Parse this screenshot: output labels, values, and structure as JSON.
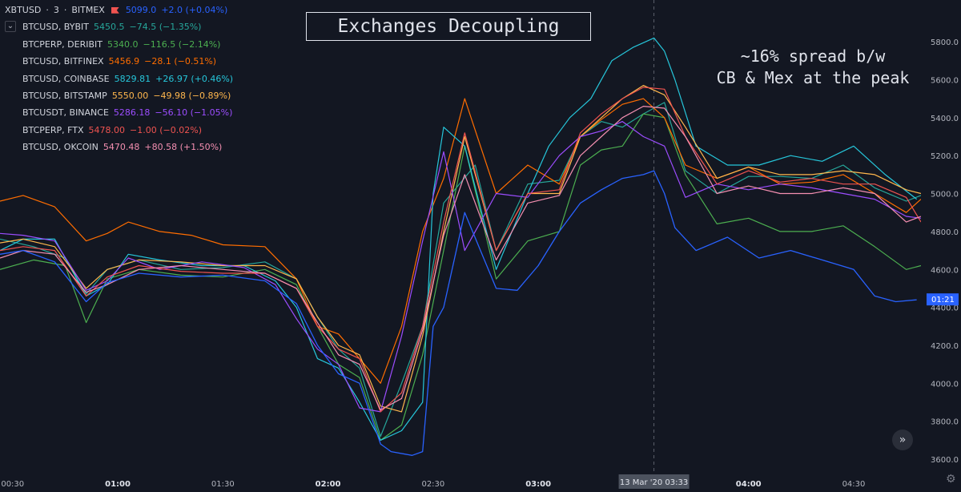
{
  "legend": {
    "main": {
      "symbol": "XBTUSD",
      "interval": "3",
      "exchange": "BITMEX",
      "sep1": "·",
      "sep2": "·",
      "value": "5099.0",
      "change": "+2.0 (+0.04%)",
      "color": "#2962ff"
    },
    "toggle_glyph": "⌄",
    "rows": [
      {
        "name": "BTCUSD, BYBIT",
        "value": "5450.5",
        "change": "−74.5 (−1.35%)",
        "color": "#26a69a"
      },
      {
        "name": "BTCPERP, DERIBIT",
        "value": "5340.0",
        "change": "−116.5 (−2.14%)",
        "color": "#4caf50"
      },
      {
        "name": "BTCUSD, BITFINEX",
        "value": "5456.9",
        "change": "−28.1 (−0.51%)",
        "color": "#ff6d00"
      },
      {
        "name": "BTCUSD, COINBASE",
        "value": "5829.81",
        "change": "+26.97 (+0.46%)",
        "color": "#26c6da"
      },
      {
        "name": "BTCUSD, BITSTAMP",
        "value": "5550.00",
        "change": "−49.98 (−0.89%)",
        "color": "#ffb74d"
      },
      {
        "name": "BTCUSDT, BINANCE",
        "value": "5286.18",
        "change": "−56.10 (−1.05%)",
        "color": "#9c4dff"
      },
      {
        "name": "BTCPERP, FTX",
        "value": "5478.00",
        "change": "−1.00 (−0.02%)",
        "color": "#ef5350"
      },
      {
        "name": "BTCUSD, OKCOIN",
        "value": "5470.48",
        "change": "+80.58 (+1.50%)",
        "color": "#f48fb1"
      }
    ]
  },
  "annotations": {
    "title": "Exchanges Decoupling",
    "note_line1": "~16% spread b/w",
    "note_line2": "CB & Mex at the peak"
  },
  "price_label": "01:21",
  "crosshair_label": "13 Mar '20   03:33",
  "scroll_icon_glyph": "»",
  "settings_icon_glyph": "⚙",
  "colors": {
    "background": "#131722",
    "price_label_bg": "#2962ff",
    "crosshair_label_bg": "#4c525e"
  },
  "chart_data": {
    "type": "line",
    "grid": false,
    "yticks": [
      3600,
      3800,
      4000,
      4200,
      4400,
      4600,
      4800,
      5000,
      5200,
      5400,
      5600,
      5800
    ],
    "ytick_labels": [
      "3600.0",
      "3800.0",
      "4000.0",
      "4200.0",
      "4400.0",
      "4600.0",
      "4800.0",
      "5000.0",
      "5200.0",
      "5400.0",
      "5600.0",
      "5800.0"
    ],
    "ylim": [
      3520,
      6020
    ],
    "xtick_labels": [
      {
        "t": 0.5,
        "label": "00:30",
        "major": false
      },
      {
        "t": 1.0,
        "label": "01:00",
        "major": true
      },
      {
        "t": 1.5,
        "label": "01:30",
        "major": false
      },
      {
        "t": 2.0,
        "label": "02:00",
        "major": true
      },
      {
        "t": 2.5,
        "label": "02:30",
        "major": false
      },
      {
        "t": 3.0,
        "label": "03:00",
        "major": true
      },
      {
        "t": 4.0,
        "label": "04:00",
        "major": true
      },
      {
        "t": 4.5,
        "label": "04:30",
        "major": false
      }
    ],
    "xlim": [
      0.44,
      4.82
    ],
    "crosshair_x": 3.55,
    "series": [
      {
        "legend_index": 0,
        "color": "#26a69a",
        "width": 1.2,
        "x": [
          0.44,
          0.6,
          0.75,
          0.85,
          0.95,
          1.1,
          1.3,
          1.5,
          1.7,
          1.85,
          1.95,
          2.05,
          2.15,
          2.25,
          2.35,
          2.45,
          2.55,
          2.7,
          2.8,
          2.95,
          3.1,
          3.2,
          3.3,
          3.4,
          3.5,
          3.6,
          3.7,
          3.85,
          4.0,
          4.15,
          4.3,
          4.45,
          4.6,
          4.75,
          4.82
        ],
        "y": [
          4760,
          4720,
          4660,
          4470,
          4600,
          4650,
          4600,
          4610,
          4640,
          4550,
          4350,
          4180,
          4080,
          3720,
          4000,
          4300,
          4950,
          5150,
          4700,
          5050,
          5070,
          5300,
          5380,
          5350,
          5420,
          5480,
          5120,
          5000,
          5090,
          5090,
          5080,
          5150,
          5030,
          4960,
          4990
        ]
      },
      {
        "legend_index": 1,
        "color": "#4caf50",
        "width": 1.2,
        "x": [
          0.44,
          0.6,
          0.75,
          0.85,
          0.95,
          1.1,
          1.3,
          1.5,
          1.7,
          1.85,
          1.95,
          2.05,
          2.15,
          2.25,
          2.35,
          2.45,
          2.55,
          2.65,
          2.8,
          2.95,
          3.1,
          3.2,
          3.3,
          3.4,
          3.5,
          3.6,
          3.7,
          3.85,
          4.0,
          4.15,
          4.3,
          4.45,
          4.6,
          4.75,
          4.82
        ],
        "y": [
          4600,
          4650,
          4620,
          4320,
          4550,
          4600,
          4570,
          4560,
          4600,
          4520,
          4300,
          4100,
          4030,
          3700,
          3780,
          4150,
          4700,
          5250,
          4550,
          4750,
          4800,
          5150,
          5230,
          5250,
          5420,
          5400,
          5100,
          4840,
          4870,
          4800,
          4800,
          4830,
          4720,
          4600,
          4620
        ]
      },
      {
        "legend_index": 2,
        "color": "#ff6d00",
        "width": 1.2,
        "x": [
          0.44,
          0.55,
          0.7,
          0.85,
          0.95,
          1.05,
          1.2,
          1.35,
          1.5,
          1.7,
          1.85,
          1.95,
          2.05,
          2.15,
          2.25,
          2.35,
          2.45,
          2.55,
          2.65,
          2.8,
          2.95,
          3.1,
          3.2,
          3.3,
          3.4,
          3.5,
          3.6,
          3.7,
          3.85,
          4.0,
          4.15,
          4.3,
          4.45,
          4.6,
          4.75,
          4.82
        ],
        "y": [
          4960,
          4990,
          4930,
          4750,
          4790,
          4850,
          4800,
          4780,
          4730,
          4720,
          4550,
          4300,
          4260,
          4130,
          4000,
          4300,
          4800,
          5080,
          5500,
          5000,
          5150,
          5050,
          5300,
          5390,
          5470,
          5500,
          5400,
          5150,
          5080,
          5140,
          5050,
          5060,
          5100,
          5000,
          4900,
          4970
        ]
      },
      {
        "legend_index": 3,
        "color": "#26c6da",
        "width": 1.2,
        "x": [
          0.44,
          0.55,
          0.7,
          0.85,
          0.95,
          1.05,
          1.2,
          1.4,
          1.6,
          1.75,
          1.85,
          1.95,
          2.05,
          2.15,
          2.25,
          2.35,
          2.45,
          2.5,
          2.55,
          2.65,
          2.8,
          2.95,
          3.05,
          3.15,
          3.25,
          3.35,
          3.45,
          3.55,
          3.6,
          3.65,
          3.75,
          3.9,
          4.05,
          4.2,
          4.35,
          4.5,
          4.65,
          4.8
        ],
        "y": [
          4700,
          4760,
          4760,
          4460,
          4520,
          4680,
          4650,
          4620,
          4620,
          4540,
          4400,
          4130,
          4080,
          3900,
          3700,
          3750,
          3900,
          5000,
          5350,
          5250,
          4600,
          5000,
          5250,
          5400,
          5500,
          5700,
          5770,
          5820,
          5750,
          5600,
          5250,
          5150,
          5150,
          5200,
          5170,
          5250,
          5100,
          4970
        ]
      },
      {
        "legend_index": 4,
        "color": "#ffb74d",
        "width": 1.2,
        "x": [
          0.44,
          0.55,
          0.7,
          0.85,
          0.95,
          1.1,
          1.3,
          1.5,
          1.7,
          1.85,
          1.95,
          2.05,
          2.15,
          2.25,
          2.35,
          2.45,
          2.55,
          2.65,
          2.8,
          2.95,
          3.1,
          3.2,
          3.3,
          3.4,
          3.5,
          3.6,
          3.7,
          3.85,
          4.0,
          4.15,
          4.3,
          4.45,
          4.6,
          4.75,
          4.82
        ],
        "y": [
          4740,
          4760,
          4720,
          4500,
          4600,
          4650,
          4640,
          4620,
          4620,
          4550,
          4350,
          4200,
          4150,
          3880,
          3850,
          4250,
          4800,
          5300,
          4700,
          5000,
          5000,
          5300,
          5400,
          5500,
          5570,
          5520,
          5350,
          5080,
          5140,
          5100,
          5100,
          5120,
          5100,
          5020,
          5000
        ]
      },
      {
        "legend_index": 5,
        "color": "#9c4dff",
        "width": 1.2,
        "x": [
          0.44,
          0.55,
          0.7,
          0.85,
          0.95,
          1.05,
          1.2,
          1.4,
          1.6,
          1.75,
          1.85,
          1.95,
          2.05,
          2.15,
          2.25,
          2.35,
          2.45,
          2.55,
          2.65,
          2.8,
          2.95,
          3.1,
          3.2,
          3.3,
          3.4,
          3.5,
          3.6,
          3.7,
          3.85,
          4.0,
          4.15,
          4.3,
          4.45,
          4.6,
          4.75,
          4.82
        ],
        "y": [
          4790,
          4780,
          4750,
          4490,
          4540,
          4660,
          4600,
          4640,
          4610,
          4520,
          4340,
          4180,
          4100,
          3870,
          3850,
          4250,
          4750,
          5220,
          4700,
          5000,
          4980,
          5200,
          5300,
          5330,
          5380,
          5300,
          5250,
          4980,
          5050,
          5020,
          5050,
          5030,
          5000,
          4970,
          4880,
          4870
        ]
      },
      {
        "legend_index": 6,
        "color": "#ef5350",
        "width": 1.2,
        "x": [
          0.44,
          0.55,
          0.7,
          0.85,
          0.95,
          1.1,
          1.3,
          1.5,
          1.7,
          1.85,
          1.95,
          2.05,
          2.15,
          2.25,
          2.35,
          2.45,
          2.55,
          2.65,
          2.8,
          2.95,
          3.1,
          3.2,
          3.3,
          3.4,
          3.5,
          3.6,
          3.7,
          3.85,
          4.0,
          4.15,
          4.3,
          4.45,
          4.6,
          4.75,
          4.82
        ],
        "y": [
          4700,
          4720,
          4700,
          4460,
          4560,
          4620,
          4590,
          4580,
          4580,
          4500,
          4300,
          4180,
          4130,
          3850,
          3950,
          4300,
          4850,
          5320,
          4700,
          5000,
          5020,
          5320,
          5420,
          5500,
          5560,
          5550,
          5300,
          5050,
          5120,
          5060,
          5080,
          5050,
          5050,
          4980,
          4850
        ]
      },
      {
        "legend_index": 7,
        "color": "#f48fb1",
        "width": 1.2,
        "x": [
          0.44,
          0.55,
          0.7,
          0.85,
          0.95,
          1.1,
          1.3,
          1.5,
          1.7,
          1.85,
          1.95,
          2.05,
          2.15,
          2.25,
          2.35,
          2.45,
          2.55,
          2.65,
          2.8,
          2.95,
          3.1,
          3.2,
          3.3,
          3.4,
          3.5,
          3.6,
          3.7,
          3.85,
          4.0,
          4.15,
          4.3,
          4.45,
          4.6,
          4.75,
          4.82
        ],
        "y": [
          4660,
          4700,
          4680,
          4480,
          4520,
          4600,
          4620,
          4600,
          4580,
          4500,
          4320,
          4150,
          4100,
          3860,
          3920,
          4280,
          4780,
          5100,
          4650,
          4950,
          4990,
          5200,
          5300,
          5400,
          5460,
          5450,
          5300,
          5000,
          5040,
          5000,
          5000,
          5030,
          5000,
          4850,
          4880
        ]
      },
      {
        "legend_index": -1,
        "color": "#2962ff",
        "width": 1.3,
        "x": [
          0.44,
          0.55,
          0.7,
          0.85,
          0.95,
          1.1,
          1.3,
          1.5,
          1.7,
          1.85,
          1.95,
          2.05,
          2.15,
          2.25,
          2.3,
          2.4,
          2.45,
          2.5,
          2.55,
          2.65,
          2.8,
          2.9,
          3.0,
          3.1,
          3.2,
          3.3,
          3.4,
          3.5,
          3.55,
          3.6,
          3.65,
          3.75,
          3.9,
          4.05,
          4.2,
          4.35,
          4.5,
          4.6,
          4.7,
          4.8
        ],
        "y": [
          4680,
          4700,
          4640,
          4430,
          4530,
          4580,
          4560,
          4570,
          4540,
          4420,
          4200,
          4050,
          4000,
          3680,
          3640,
          3620,
          3640,
          4300,
          4400,
          4900,
          4500,
          4490,
          4620,
          4800,
          4950,
          5020,
          5080,
          5100,
          5120,
          5000,
          4820,
          4700,
          4770,
          4660,
          4700,
          4650,
          4600,
          4460,
          4430,
          4440
        ]
      }
    ]
  }
}
